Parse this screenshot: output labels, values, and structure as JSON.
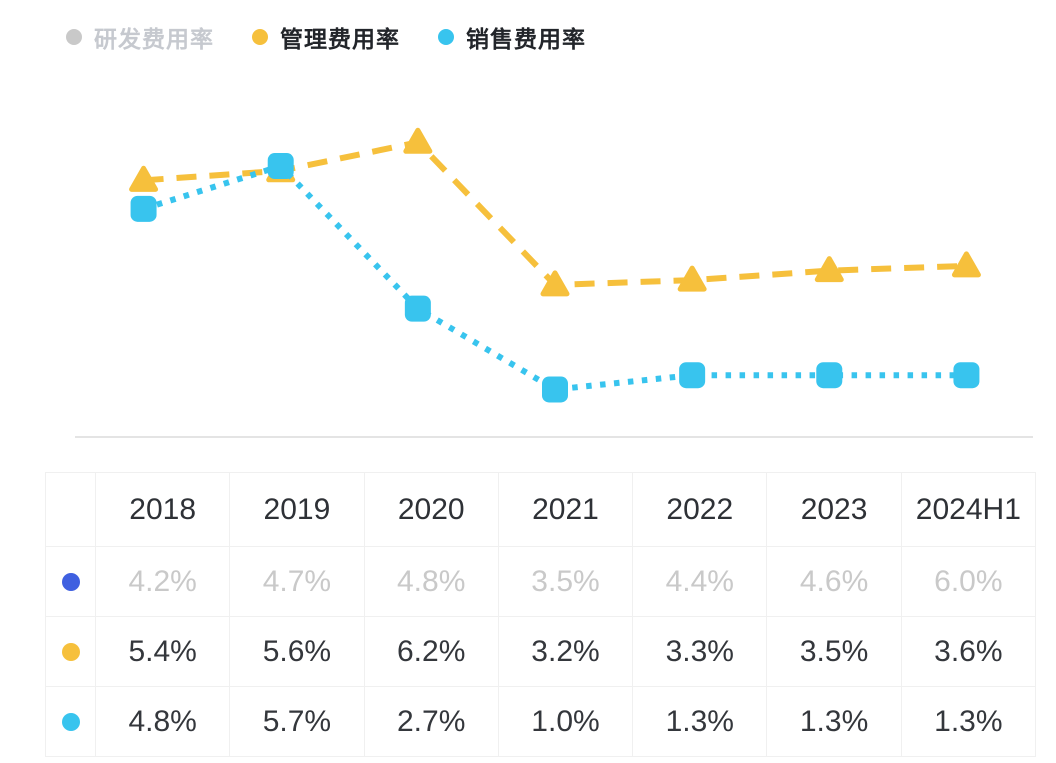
{
  "legend": {
    "items": [
      {
        "label": "研发费用率",
        "dot_color": "#c9c9c9",
        "text_color": "#c6c9cf",
        "active": false
      },
      {
        "label": "管理费用率",
        "dot_color": "#f6c03c",
        "text_color": "#22252a",
        "active": true
      },
      {
        "label": "销售费用率",
        "dot_color": "#38c4ee",
        "text_color": "#22252a",
        "active": true
      }
    ]
  },
  "chart_data": {
    "type": "line",
    "categories": [
      "2018",
      "2019",
      "2020",
      "2021",
      "2022",
      "2023",
      "2024H1"
    ],
    "series": [
      {
        "name": "研发费用率",
        "name_en": "rd-expense-ratio",
        "color": "#3f60e0",
        "visible": false,
        "marker": "circle",
        "line_style": "dashed",
        "values": [
          4.2,
          4.7,
          4.8,
          3.5,
          4.4,
          4.6,
          6.0
        ]
      },
      {
        "name": "管理费用率",
        "name_en": "management-expense-ratio",
        "color": "#f6c03c",
        "visible": true,
        "marker": "triangle",
        "line_style": "dashed",
        "values": [
          5.4,
          5.6,
          6.2,
          3.2,
          3.3,
          3.5,
          3.6
        ]
      },
      {
        "name": "销售费用率",
        "name_en": "sales-expense-ratio",
        "color": "#38c4ee",
        "visible": true,
        "marker": "square",
        "line_style": "dotted",
        "values": [
          4.8,
          5.7,
          2.7,
          1.0,
          1.3,
          1.3,
          1.3
        ]
      }
    ],
    "unit": "%",
    "ylim": [
      0,
      7.3
    ],
    "grid": false,
    "legend_position": "top",
    "baseline_color": "#e4e4e4"
  },
  "table": {
    "corner_label": "",
    "header": [
      "2018",
      "2019",
      "2020",
      "2021",
      "2022",
      "2023",
      "2024H1"
    ],
    "rows": [
      {
        "series": "研发费用率",
        "dot_color": "#3f60e0",
        "muted": true,
        "values": [
          "4.2%",
          "4.7%",
          "4.8%",
          "3.5%",
          "4.4%",
          "4.6%",
          "6.0%"
        ]
      },
      {
        "series": "管理费用率",
        "dot_color": "#f6c03c",
        "muted": false,
        "values": [
          "5.4%",
          "5.6%",
          "6.2%",
          "3.2%",
          "3.3%",
          "3.5%",
          "3.6%"
        ]
      },
      {
        "series": "销售费用率",
        "dot_color": "#38c4ee",
        "muted": false,
        "values": [
          "4.8%",
          "5.7%",
          "2.7%",
          "1.0%",
          "1.3%",
          "1.3%",
          "1.3%"
        ]
      }
    ]
  }
}
